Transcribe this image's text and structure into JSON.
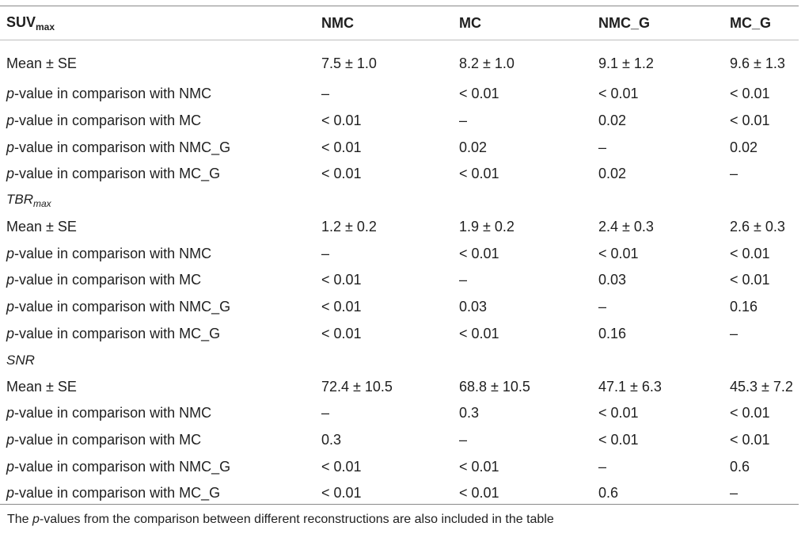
{
  "table": {
    "header": {
      "label_main": "SUV",
      "label_sub": "max",
      "columns": [
        "NMC",
        "MC",
        "NMC_G",
        "MC_G"
      ]
    },
    "row_labels": {
      "mean": "Mean ± SE",
      "p_prefix": "p",
      "p_nmc": "-value in comparison with NMC",
      "p_mc": "-value in comparison with MC",
      "p_nmcg": "-value in comparison with NMC_G",
      "p_mcg": "-value in comparison with MC_G"
    },
    "sections": [
      {
        "title_main": "",
        "title_sub": "",
        "rows": [
          [
            "7.5 ± 1.0",
            "8.2 ± 1.0",
            "9.1 ± 1.2",
            "9.6 ± 1.3"
          ],
          [
            "–",
            "< 0.01",
            "< 0.01",
            "< 0.01"
          ],
          [
            "< 0.01",
            "–",
            "0.02",
            "< 0.01"
          ],
          [
            "< 0.01",
            "0.02",
            "–",
            "0.02"
          ],
          [
            "< 0.01",
            "< 0.01",
            "0.02",
            "–"
          ]
        ]
      },
      {
        "title_main": "TBR",
        "title_sub": "max",
        "rows": [
          [
            "1.2 ± 0.2",
            "1.9 ± 0.2",
            "2.4 ± 0.3",
            "2.6 ± 0.3"
          ],
          [
            "–",
            "< 0.01",
            "< 0.01",
            "< 0.01"
          ],
          [
            "< 0.01",
            "–",
            "0.03",
            "< 0.01"
          ],
          [
            "< 0.01",
            "0.03",
            "–",
            "0.16"
          ],
          [
            "< 0.01",
            "< 0.01",
            "0.16",
            "–"
          ]
        ]
      },
      {
        "title_main": "SNR",
        "title_sub": "",
        "rows": [
          [
            "72.4 ± 10.5",
            "68.8 ± 10.5",
            "47.1 ± 6.3",
            "45.3 ± 7.2"
          ],
          [
            "–",
            "0.3",
            "< 0.01",
            "< 0.01"
          ],
          [
            "0.3",
            "–",
            "< 0.01",
            "< 0.01"
          ],
          [
            "< 0.01",
            "< 0.01",
            "–",
            "0.6"
          ],
          [
            "< 0.01",
            "< 0.01",
            "0.6",
            "–"
          ]
        ]
      }
    ]
  },
  "footnote": {
    "before": "The ",
    "italic": "p",
    "after": "-values from the comparison between different reconstructions are also included in the table"
  }
}
